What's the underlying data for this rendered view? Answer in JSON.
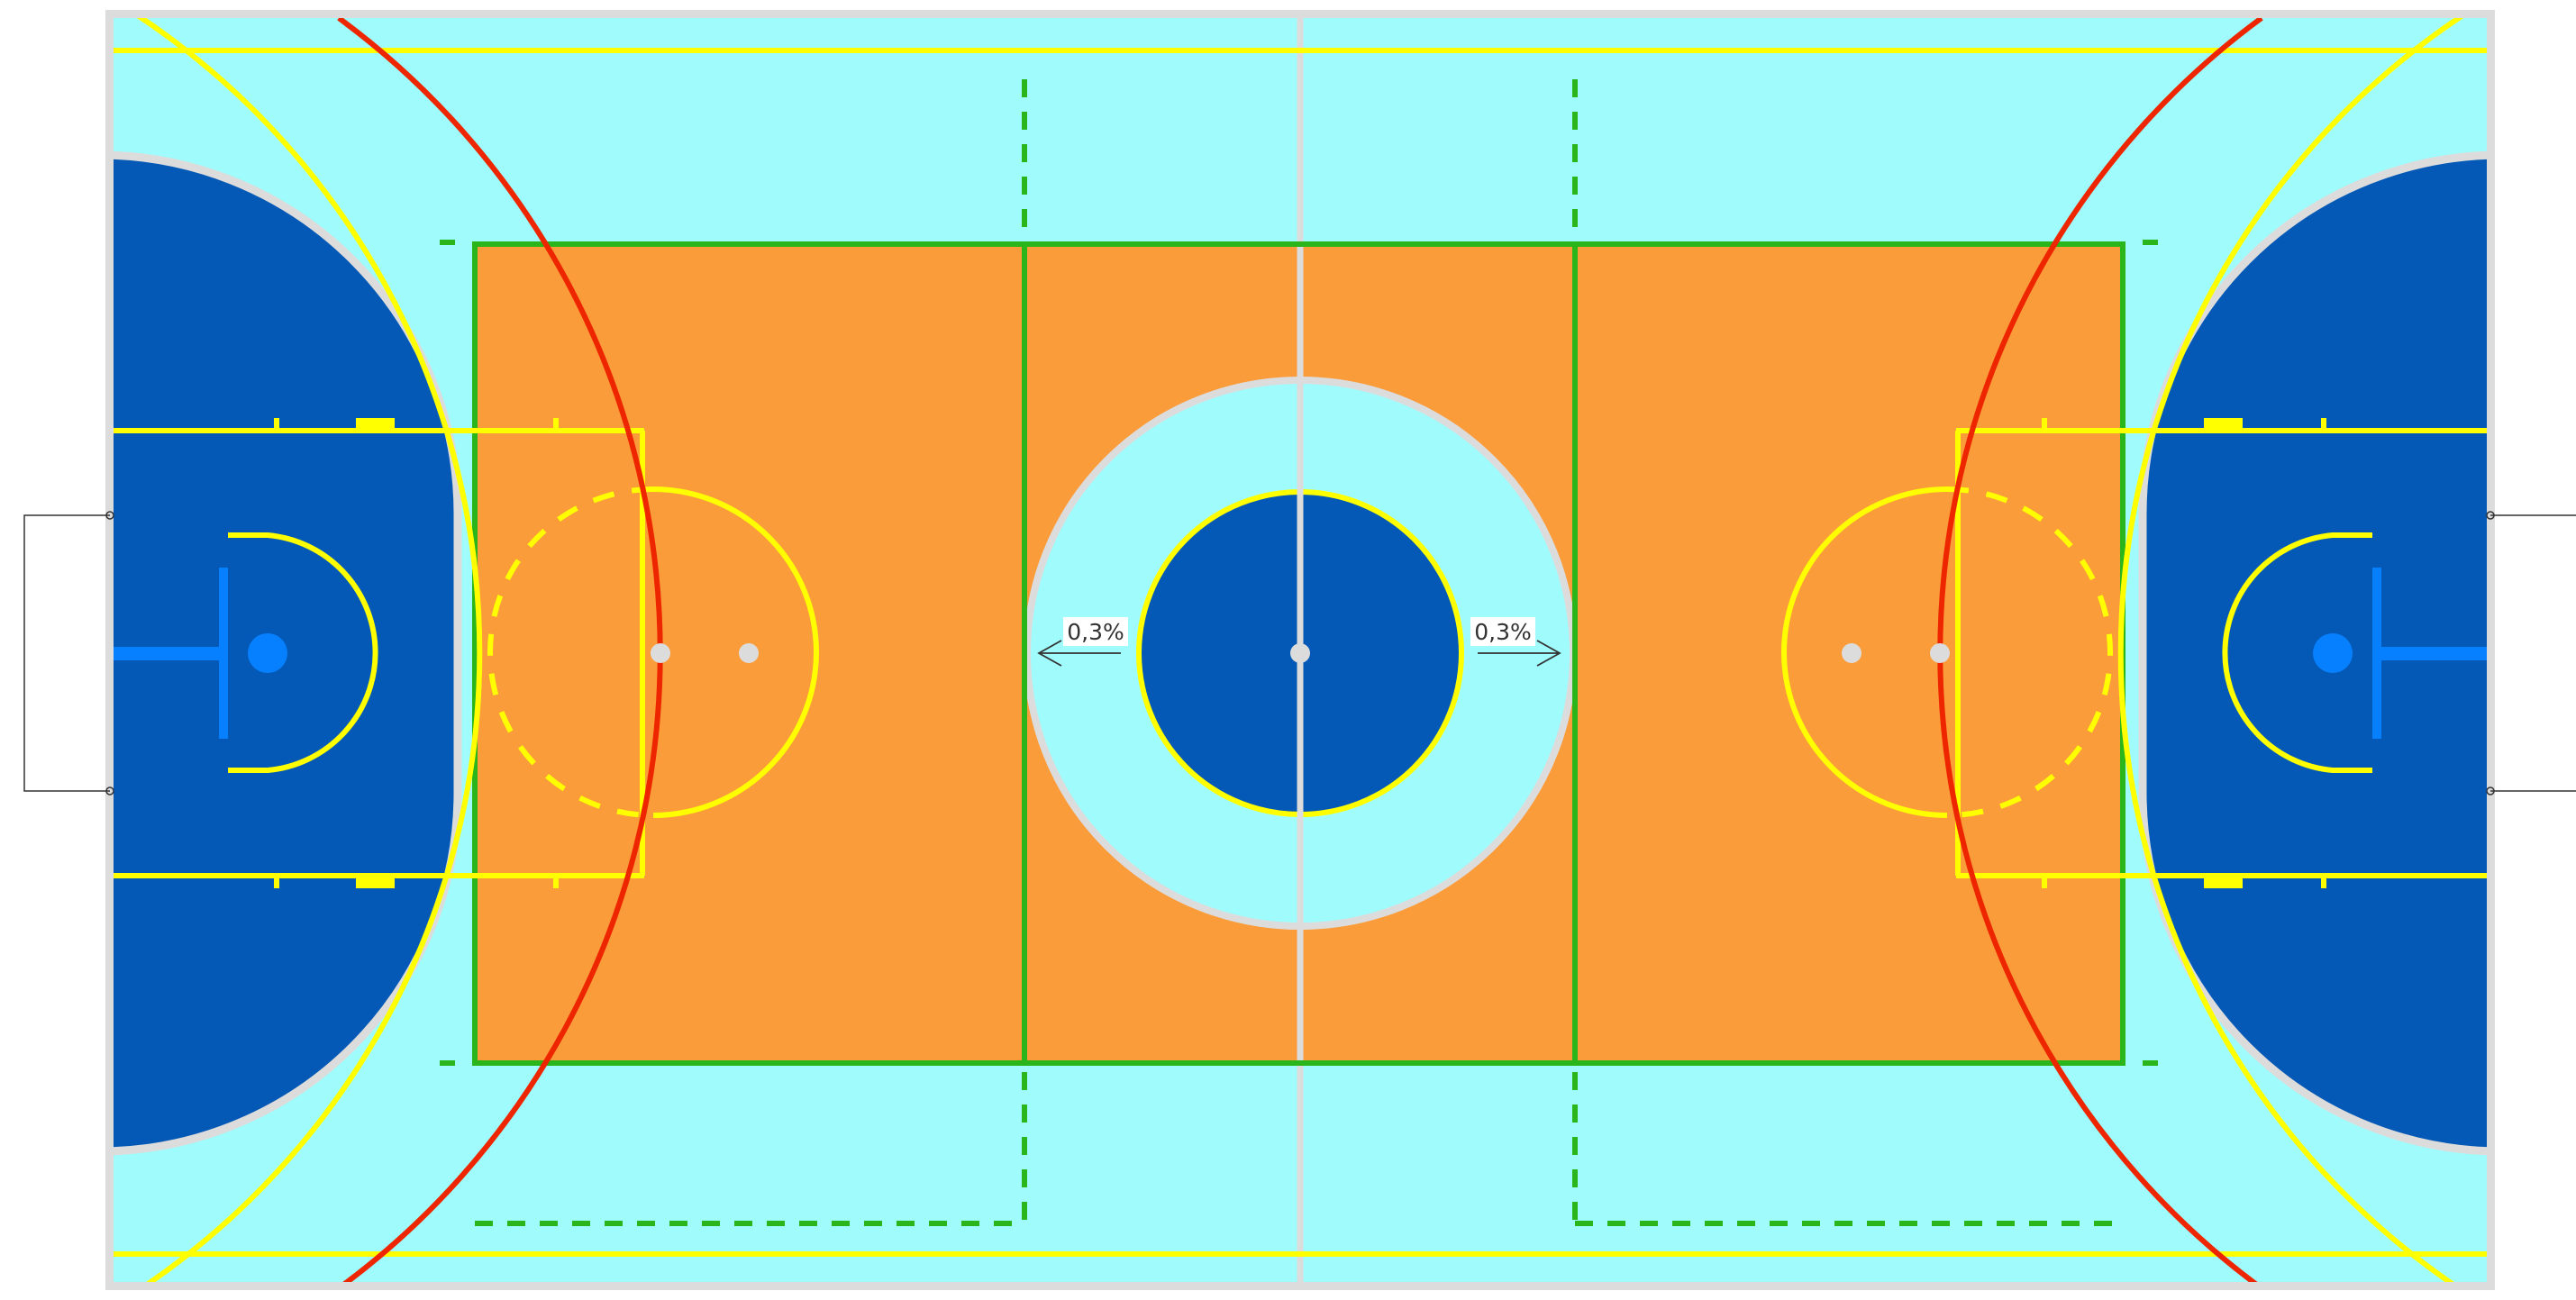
{
  "slope_labels": {
    "left": "0,3%",
    "right": "0,3%"
  },
  "colors": {
    "outer_area": "#a0fcfc",
    "border": "#dcdcdc",
    "playing_area": "#fb9c3a",
    "goal_area": "#0359b5",
    "volleyball_lines": "#2ab51a",
    "basketball_lines": "#ffff00",
    "three_point_arc": "#ee2600",
    "basket_marks": "#0780ff",
    "center_line": "#dcdcdc"
  }
}
